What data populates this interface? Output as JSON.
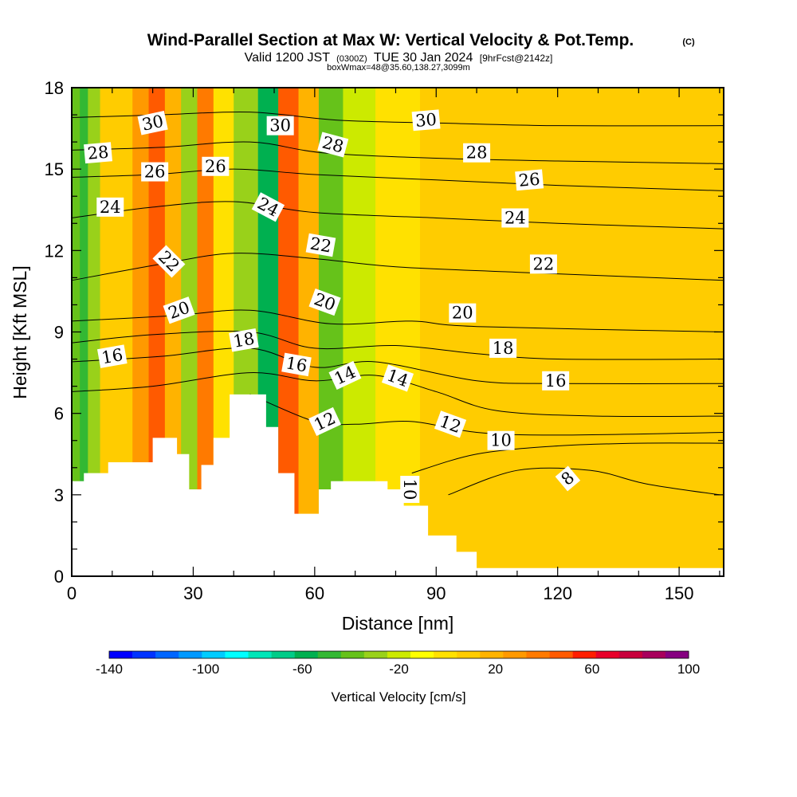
{
  "title": {
    "main": "Wind-Parallel Section at Max W: Vertical Velocity & Pot.Temp.",
    "copyright": "(C)",
    "valid_prefix": "Valid 1200 JST",
    "valid_utc": "(0300Z)",
    "valid_date": "TUE 30 Jan 2024",
    "forecast": "[9hrFcst@2142z]",
    "box_info": "boxWmax=48@35.60,138.27,3099m"
  },
  "chart_data": {
    "type": "heatmap",
    "xlabel": "Distance [nm]",
    "ylabel": "Height [Kft MSL]",
    "xlim": [
      0,
      161
    ],
    "ylim": [
      0,
      18
    ],
    "x_ticks": [
      "0",
      "30",
      "60",
      "90",
      "120",
      "150"
    ],
    "y_ticks": [
      "0",
      "3",
      "6",
      "9",
      "12",
      "15",
      "18"
    ],
    "colorbar": {
      "label": "Vertical Velocity [cm/s]",
      "min": -140,
      "max": 100,
      "step": 10,
      "tick_labels": [
        "-140",
        "-100",
        "-60",
        "-20",
        "20",
        "60",
        "100"
      ],
      "colors": [
        "#0000ff",
        "#0033ff",
        "#0066ff",
        "#0099ff",
        "#00ccff",
        "#00ffff",
        "#00e6b8",
        "#00cc88",
        "#00b050",
        "#33b833",
        "#66c21a",
        "#99d11a",
        "#ccea00",
        "#ffff00",
        "#ffe100",
        "#ffcc00",
        "#ffb300",
        "#ff9900",
        "#ff7a00",
        "#ff5a00",
        "#ff1e00",
        "#e8002a",
        "#c8003c",
        "#a8005c",
        "#860080"
      ]
    },
    "velocity_bands": [
      {
        "x": [
          0,
          2
        ],
        "w": -40
      },
      {
        "x": [
          2,
          4
        ],
        "w": -45
      },
      {
        "x": [
          4,
          7
        ],
        "w": -30
      },
      {
        "x": [
          7,
          15
        ],
        "w": 10
      },
      {
        "x": [
          15,
          19
        ],
        "w": 35
      },
      {
        "x": [
          19,
          23
        ],
        "w": 55
      },
      {
        "x": [
          23,
          27
        ],
        "w": 25
      },
      {
        "x": [
          27,
          31
        ],
        "w": -25
      },
      {
        "x": [
          31,
          35
        ],
        "w": 45
      },
      {
        "x": [
          35,
          40
        ],
        "w": 5
      },
      {
        "x": [
          40,
          46
        ],
        "w": -30
      },
      {
        "x": [
          46,
          51
        ],
        "w": -60
      },
      {
        "x": [
          51,
          56
        ],
        "w": 50
      },
      {
        "x": [
          56,
          61
        ],
        "w": 25
      },
      {
        "x": [
          61,
          67
        ],
        "w": -40
      },
      {
        "x": [
          67,
          75
        ],
        "w": -15
      },
      {
        "x": [
          75,
          86
        ],
        "w": 5
      },
      {
        "x": [
          86,
          161
        ],
        "w": 10
      }
    ],
    "terrain": [
      [
        0,
        3.5
      ],
      [
        3,
        3.8
      ],
      [
        9,
        4.2
      ],
      [
        20,
        5.1
      ],
      [
        26,
        4.5
      ],
      [
        29,
        3.2
      ],
      [
        32,
        4.1
      ],
      [
        35,
        5.1
      ],
      [
        39,
        6.7
      ],
      [
        48,
        5.5
      ],
      [
        51,
        3.8
      ],
      [
        55,
        2.3
      ],
      [
        61,
        3.2
      ],
      [
        64,
        3.5
      ],
      [
        78,
        3.2
      ],
      [
        82,
        2.6
      ],
      [
        88,
        1.5
      ],
      [
        95,
        0.9
      ],
      [
        100,
        0.3
      ],
      [
        161,
        0.3
      ]
    ],
    "theta_contours": [
      {
        "level": "8",
        "points": [
          [
            93,
            3
          ],
          [
            110,
            3.9
          ],
          [
            128,
            3.9
          ],
          [
            142,
            3.4
          ],
          [
            160,
            3
          ]
        ]
      },
      {
        "level": "10",
        "points": [
          [
            84,
            3.8
          ],
          [
            100,
            4.5
          ],
          [
            120,
            4.8
          ],
          [
            140,
            4.9
          ],
          [
            161,
            4.9
          ]
        ]
      },
      {
        "level": "12",
        "points": [
          [
            44,
            6.7
          ],
          [
            60,
            5.7
          ],
          [
            70,
            5.6
          ],
          [
            84,
            5.7
          ],
          [
            100,
            5.3
          ],
          [
            120,
            5.2
          ],
          [
            161,
            5.3
          ]
        ]
      },
      {
        "level": "14",
        "points": [
          [
            0,
            6.8
          ],
          [
            20,
            7
          ],
          [
            44,
            7.5
          ],
          [
            60,
            7.2
          ],
          [
            75,
            7.4
          ],
          [
            90,
            6.8
          ],
          [
            105,
            6.1
          ],
          [
            130,
            5.9
          ],
          [
            161,
            5.9
          ]
        ]
      },
      {
        "level": "16",
        "points": [
          [
            0,
            7.9
          ],
          [
            22,
            8.1
          ],
          [
            44,
            8.4
          ],
          [
            60,
            7.7
          ],
          [
            75,
            7.9
          ],
          [
            100,
            7.2
          ],
          [
            120,
            7.1
          ],
          [
            161,
            7.1
          ]
        ]
      },
      {
        "level": "18",
        "points": [
          [
            0,
            8.6
          ],
          [
            20,
            8.9
          ],
          [
            44,
            9
          ],
          [
            60,
            8.4
          ],
          [
            80,
            8.5
          ],
          [
            100,
            8.2
          ],
          [
            120,
            8
          ],
          [
            161,
            8
          ]
        ]
      },
      {
        "level": "20",
        "points": [
          [
            0,
            9.4
          ],
          [
            25,
            9.6
          ],
          [
            44,
            9.8
          ],
          [
            64,
            9.3
          ],
          [
            84,
            9.4
          ],
          [
            100,
            9.2
          ],
          [
            161,
            9
          ]
        ]
      },
      {
        "level": "22",
        "points": [
          [
            0,
            10.9
          ],
          [
            22,
            11.5
          ],
          [
            40,
            11.9
          ],
          [
            60,
            11.7
          ],
          [
            80,
            11.4
          ],
          [
            110,
            11.2
          ],
          [
            161,
            10.9
          ]
        ]
      },
      {
        "level": "24",
        "points": [
          [
            0,
            13.2
          ],
          [
            20,
            13.6
          ],
          [
            40,
            13.8
          ],
          [
            60,
            13.4
          ],
          [
            90,
            13.2
          ],
          [
            120,
            13
          ],
          [
            161,
            12.8
          ]
        ]
      },
      {
        "level": "26",
        "points": [
          [
            0,
            14.7
          ],
          [
            20,
            14.8
          ],
          [
            40,
            15
          ],
          [
            60,
            14.8
          ],
          [
            90,
            14.6
          ],
          [
            120,
            14.4
          ],
          [
            161,
            14.2
          ]
        ]
      },
      {
        "level": "28",
        "points": [
          [
            0,
            15.7
          ],
          [
            22,
            15.8
          ],
          [
            44,
            16
          ],
          [
            62,
            15.6
          ],
          [
            90,
            15.4
          ],
          [
            120,
            15.3
          ],
          [
            161,
            15.2
          ]
        ]
      },
      {
        "level": "30",
        "points": [
          [
            0,
            16.9
          ],
          [
            22,
            17
          ],
          [
            44,
            17.1
          ],
          [
            66,
            16.8
          ],
          [
            90,
            16.7
          ],
          [
            120,
            16.6
          ],
          [
            161,
            16.6
          ]
        ]
      }
    ],
    "contour_labels": [
      {
        "text": "30",
        "x": 20,
        "y": 16.7,
        "rot": -12
      },
      {
        "text": "30",
        "x": 51.5,
        "y": 16.6,
        "rot": 0
      },
      {
        "text": "30",
        "x": 87.5,
        "y": 16.8,
        "rot": -5
      },
      {
        "text": "28",
        "x": 6.5,
        "y": 15.6,
        "rot": -5
      },
      {
        "text": "28",
        "x": 64.5,
        "y": 15.9,
        "rot": 15
      },
      {
        "text": "28",
        "x": 100,
        "y": 15.6,
        "rot": 0
      },
      {
        "text": "26",
        "x": 20.5,
        "y": 14.9,
        "rot": 0
      },
      {
        "text": "26",
        "x": 35.5,
        "y": 15.1,
        "rot": 0
      },
      {
        "text": "26",
        "x": 113,
        "y": 14.6,
        "rot": -5
      },
      {
        "text": "24",
        "x": 9.5,
        "y": 13.6,
        "rot": 0
      },
      {
        "text": "24",
        "x": 48.5,
        "y": 13.6,
        "rot": 28
      },
      {
        "text": "24",
        "x": 109.5,
        "y": 13.2,
        "rot": 0
      },
      {
        "text": "22",
        "x": 24,
        "y": 11.6,
        "rot": 45
      },
      {
        "text": "22",
        "x": 61.5,
        "y": 12.2,
        "rot": 10
      },
      {
        "text": "22",
        "x": 116.5,
        "y": 11.5,
        "rot": 0
      },
      {
        "text": "20",
        "x": 26.5,
        "y": 9.8,
        "rot": -20
      },
      {
        "text": "20",
        "x": 62.5,
        "y": 10.1,
        "rot": 20
      },
      {
        "text": "20",
        "x": 96.5,
        "y": 9.7,
        "rot": 0
      },
      {
        "text": "18",
        "x": 42.5,
        "y": 8.7,
        "rot": -10
      },
      {
        "text": "18",
        "x": 106.5,
        "y": 8.4,
        "rot": 0
      },
      {
        "text": "16",
        "x": 10,
        "y": 8.1,
        "rot": -10
      },
      {
        "text": "16",
        "x": 55.5,
        "y": 7.8,
        "rot": 10
      },
      {
        "text": "16",
        "x": 119.5,
        "y": 7.2,
        "rot": 0
      },
      {
        "text": "14",
        "x": 67.5,
        "y": 7.4,
        "rot": -25
      },
      {
        "text": "14",
        "x": 80.5,
        "y": 7.3,
        "rot": 20
      },
      {
        "text": "12",
        "x": 62.5,
        "y": 5.7,
        "rot": -25
      },
      {
        "text": "12",
        "x": 93.5,
        "y": 5.6,
        "rot": 20
      },
      {
        "text": "10",
        "x": 106,
        "y": 5,
        "rot": 0
      },
      {
        "text": "10",
        "x": 83.5,
        "y": 3.2,
        "rot": 90
      },
      {
        "text": "8",
        "x": 122.5,
        "y": 3.6,
        "rot": -40
      }
    ]
  }
}
